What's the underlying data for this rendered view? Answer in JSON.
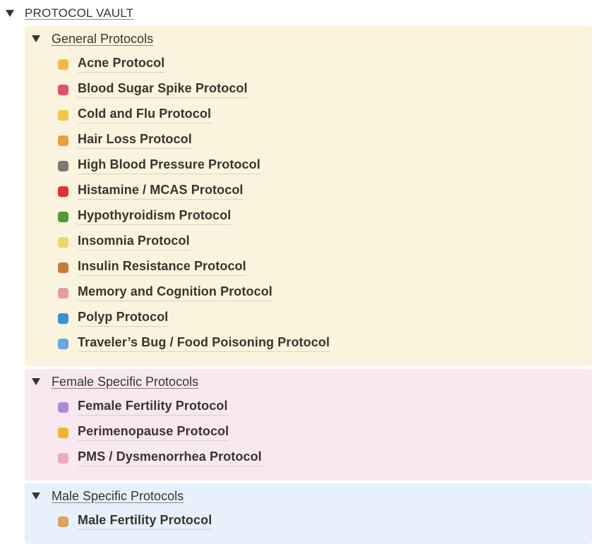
{
  "header": {
    "title": "PROTOCOL VAULT"
  },
  "sections": [
    {
      "title": "General Protocols",
      "items": [
        "Acne Protocol",
        "Blood Sugar Spike Protocol",
        "Cold and Flu Protocol",
        "Hair Loss Protocol",
        "High Blood Pressure Protocol",
        "Histamine / MCAS Protocol",
        "Hypothyroidism Protocol",
        "Insomnia Protocol",
        "Insulin Resistance Protocol",
        "Memory and Cognition Protocol",
        "Polyp Protocol",
        "Traveler’s Bug / Food Poisoning Protocol"
      ]
    },
    {
      "title": "Female Specific Protocols",
      "items": [
        "Female Fertility Protocol",
        "Perimenopause Protocol",
        "PMS / Dysmenorrhea Protocol"
      ]
    },
    {
      "title": "Male Specific Protocols",
      "items": [
        "Male Fertility Protocol"
      ]
    }
  ]
}
